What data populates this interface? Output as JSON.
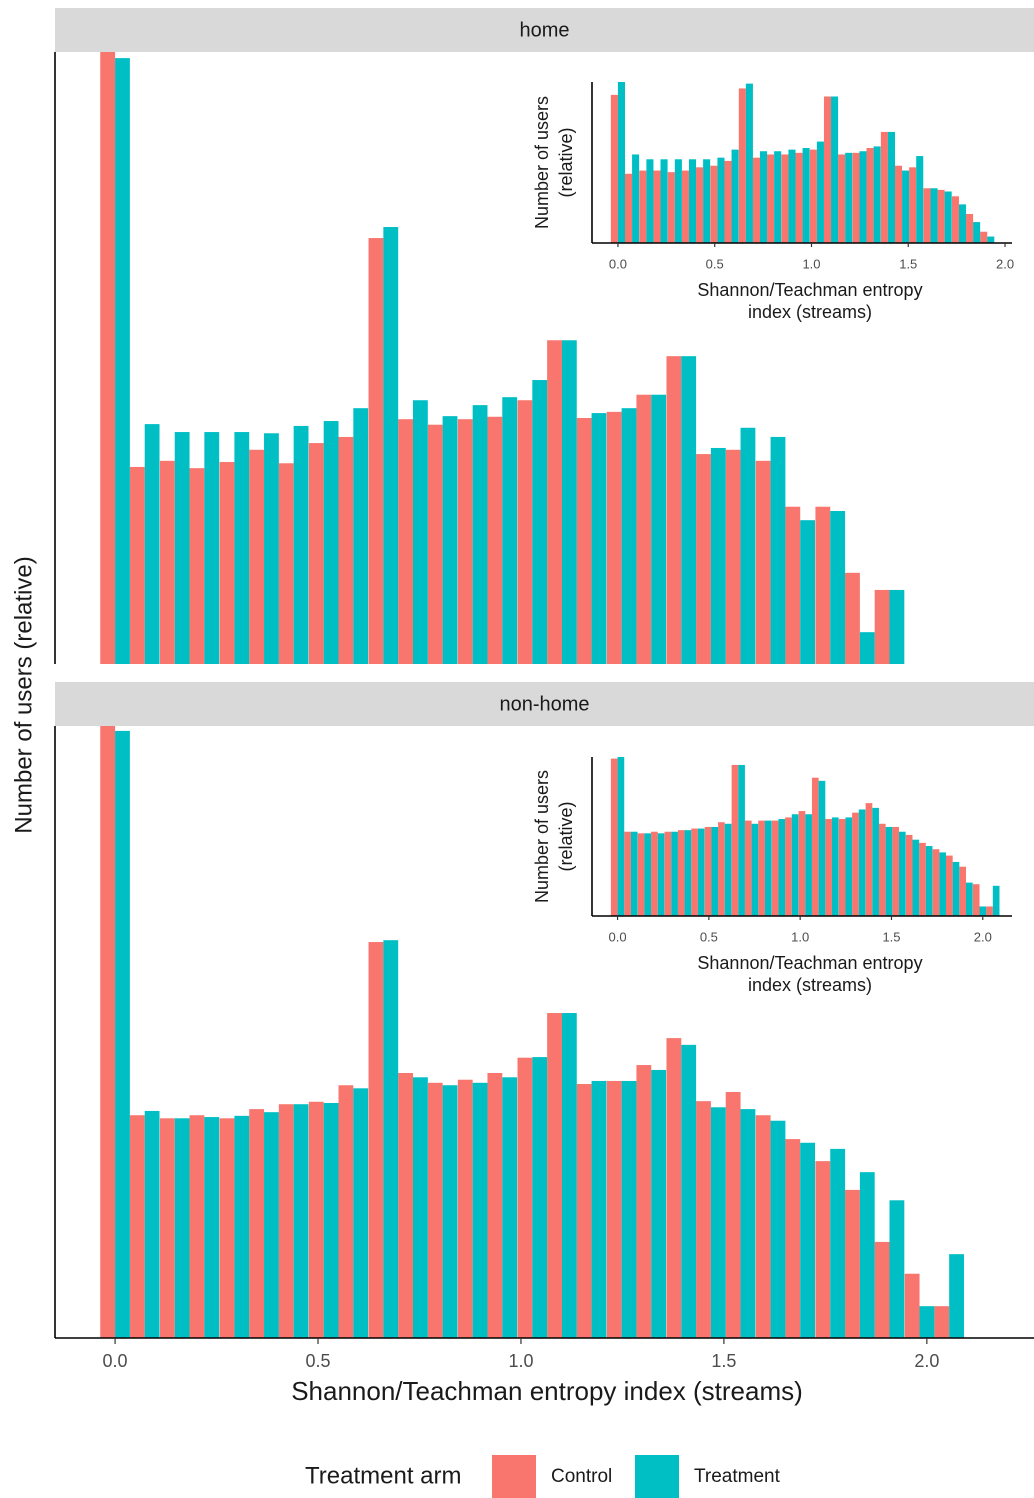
{
  "chart_data": [
    {
      "type": "bar",
      "title": "home",
      "x": [
        0,
        0.073,
        0.147,
        0.22,
        0.294,
        0.367,
        0.44,
        0.514,
        0.587,
        0.661,
        0.734,
        0.807,
        0.881,
        0.954,
        1.028,
        1.101,
        1.174,
        1.248,
        1.321,
        1.395,
        1.468,
        1.541,
        1.615,
        1.688,
        1.762,
        1.835,
        1.908
      ],
      "series": [
        {
          "name": "Control",
          "color": "#F8766D",
          "values": [
            1.0,
            0.322,
            0.332,
            0.32,
            0.33,
            0.35,
            0.328,
            0.361,
            0.371,
            0.696,
            0.4,
            0.391,
            0.4,
            0.404,
            0.431,
            0.529,
            0.402,
            0.412,
            0.44,
            0.503,
            0.343,
            0.35,
            0.332,
            0.257,
            0.257,
            0.149,
            0.121
          ]
        },
        {
          "name": "Treatment",
          "color": "#00BFC4",
          "values": [
            0.99,
            0.392,
            0.379,
            0.379,
            0.379,
            0.377,
            0.389,
            0.397,
            0.418,
            0.714,
            0.431,
            0.405,
            0.423,
            0.436,
            0.464,
            0.529,
            0.41,
            0.418,
            0.44,
            0.503,
            0.353,
            0.386,
            0.371,
            0.235,
            0.25,
            0.052,
            0.121
          ]
        }
      ],
      "xlim": [
        -0.148,
        2.264
      ],
      "ylim": [
        0,
        1
      ]
    },
    {
      "type": "bar",
      "ylabel": [
        "Number of users",
        "(relative)"
      ],
      "xlabel": [
        "Shannon/Teachman entropy",
        "index (streams)"
      ],
      "x": [
        0,
        0.073,
        0.147,
        0.22,
        0.294,
        0.367,
        0.44,
        0.514,
        0.587,
        0.661,
        0.734,
        0.807,
        0.881,
        0.954,
        1.028,
        1.101,
        1.174,
        1.248,
        1.321,
        1.395,
        1.468,
        1.541,
        1.615,
        1.688,
        1.762,
        1.835,
        1.908
      ],
      "series": [
        {
          "name": "Control",
          "color": "#F8766D",
          "values": [
            0.92,
            0.43,
            0.45,
            0.45,
            0.44,
            0.45,
            0.47,
            0.48,
            0.51,
            0.96,
            0.53,
            0.55,
            0.55,
            0.56,
            0.58,
            0.91,
            0.55,
            0.56,
            0.59,
            0.69,
            0.48,
            0.47,
            0.34,
            0.33,
            0.29,
            0.18,
            0.07
          ]
        },
        {
          "name": "Treatment",
          "color": "#00BFC4",
          "values": [
            1.0,
            0.55,
            0.52,
            0.52,
            0.52,
            0.52,
            0.52,
            0.53,
            0.58,
            0.99,
            0.57,
            0.57,
            0.58,
            0.59,
            0.63,
            0.91,
            0.56,
            0.57,
            0.6,
            0.69,
            0.45,
            0.54,
            0.34,
            0.32,
            0.24,
            0.13,
            0.04
          ]
        }
      ],
      "xlim": [
        -0.134,
        2.036
      ],
      "ylim": [
        0,
        1
      ],
      "xticks": [
        {
          "value": 0,
          "label": "0.0"
        },
        0.5,
        {
          "value": 1,
          "label": "1.0"
        },
        1.5,
        {
          "value": 2,
          "label": "2.0"
        }
      ]
    },
    {
      "type": "bar",
      "title": "non-home",
      "x": [
        0,
        0.073,
        0.147,
        0.22,
        0.294,
        0.367,
        0.44,
        0.514,
        0.587,
        0.661,
        0.734,
        0.807,
        0.881,
        0.954,
        1.028,
        1.101,
        1.174,
        1.248,
        1.321,
        1.395,
        1.468,
        1.541,
        1.615,
        1.688,
        1.762,
        1.835,
        1.908,
        1.982,
        2.055
      ],
      "series": [
        {
          "name": "Control",
          "color": "#F8766D",
          "values": [
            1.0,
            0.364,
            0.359,
            0.364,
            0.359,
            0.374,
            0.382,
            0.386,
            0.413,
            0.647,
            0.433,
            0.417,
            0.422,
            0.433,
            0.458,
            0.531,
            0.415,
            0.42,
            0.446,
            0.49,
            0.387,
            0.402,
            0.364,
            0.325,
            0.289,
            0.242,
            0.157,
            0.105,
            0.052
          ]
        },
        {
          "name": "Treatment",
          "color": "#00BFC4",
          "values": [
            0.992,
            0.371,
            0.359,
            0.361,
            0.363,
            0.369,
            0.382,
            0.384,
            0.408,
            0.65,
            0.426,
            0.413,
            0.417,
            0.426,
            0.459,
            0.531,
            0.42,
            0.42,
            0.438,
            0.479,
            0.377,
            0.374,
            0.355,
            0.319,
            0.309,
            0.271,
            0.225,
            0.052,
            0.137
          ]
        }
      ],
      "xlim": [
        -0.148,
        2.264
      ],
      "ylim": [
        0,
        1
      ],
      "xticks": [
        {
          "value": 0,
          "label": "0.0"
        },
        0.5,
        {
          "value": 1,
          "label": "1.0"
        },
        1.5,
        {
          "value": 2,
          "label": "2.0"
        }
      ]
    },
    {
      "type": "bar",
      "ylabel": [
        "Number of users",
        "(relative)"
      ],
      "xlabel": [
        "Shannon/Teachman entropy",
        "index (streams)"
      ],
      "x": [
        0,
        0.073,
        0.147,
        0.22,
        0.294,
        0.367,
        0.44,
        0.514,
        0.587,
        0.661,
        0.734,
        0.807,
        0.881,
        0.954,
        1.028,
        1.101,
        1.174,
        1.248,
        1.321,
        1.395,
        1.468,
        1.541,
        1.615,
        1.688,
        1.762,
        1.835,
        1.908,
        1.982,
        2.055
      ],
      "series": [
        {
          "name": "Control",
          "color": "#F8766D",
          "values": [
            0.99,
            0.53,
            0.52,
            0.53,
            0.53,
            0.54,
            0.55,
            0.56,
            0.59,
            0.95,
            0.6,
            0.6,
            0.6,
            0.62,
            0.66,
            0.87,
            0.61,
            0.61,
            0.65,
            0.71,
            0.58,
            0.56,
            0.51,
            0.46,
            0.42,
            0.38,
            0.31,
            0.2,
            0.06
          ]
        },
        {
          "name": "Treatment",
          "color": "#00BFC4",
          "values": [
            1.0,
            0.53,
            0.52,
            0.52,
            0.53,
            0.54,
            0.55,
            0.56,
            0.58,
            0.95,
            0.58,
            0.6,
            0.61,
            0.64,
            0.64,
            0.85,
            0.62,
            0.62,
            0.67,
            0.68,
            0.56,
            0.53,
            0.48,
            0.44,
            0.4,
            0.34,
            0.21,
            0.06,
            0.19
          ]
        }
      ],
      "xlim": [
        -0.14,
        2.16
      ],
      "ylim": [
        0,
        1
      ],
      "xticks": [
        {
          "value": 0,
          "label": "0.0"
        },
        0.5,
        {
          "value": 1,
          "label": "1.0"
        },
        1.5,
        {
          "value": 2,
          "label": "2.0"
        }
      ]
    }
  ],
  "xlabel": "Shannon/Teachman entropy index (streams)",
  "ylabel": "Number of users (relative)",
  "legend_title": "Treatment arm"
}
